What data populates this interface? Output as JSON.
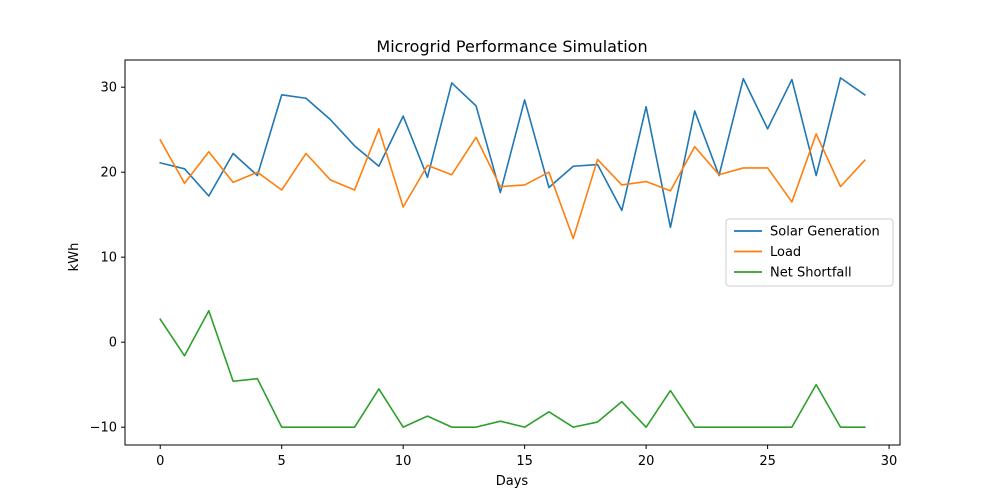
{
  "chart_data": {
    "type": "line",
    "title": "Microgrid Performance Simulation",
    "xlabel": "Days",
    "ylabel": "kWh",
    "xlim": [
      -1.45,
      30.45
    ],
    "ylim": [
      -12.1,
      33.2
    ],
    "x_ticks": [
      0,
      5,
      10,
      15,
      20,
      25,
      30
    ],
    "y_ticks": [
      -10,
      0,
      10,
      20,
      30
    ],
    "grid": false,
    "legend_position": "center-right",
    "x": [
      0,
      1,
      2,
      3,
      4,
      5,
      6,
      7,
      8,
      9,
      10,
      11,
      12,
      13,
      14,
      15,
      16,
      17,
      18,
      19,
      20,
      21,
      22,
      23,
      24,
      25,
      26,
      27,
      28,
      29
    ],
    "series": [
      {
        "name": "Solar Generation",
        "color": "#1f77b4",
        "values": [
          21.1,
          20.4,
          17.2,
          22.2,
          19.6,
          29.1,
          28.7,
          26.2,
          23.1,
          20.7,
          26.6,
          19.4,
          30.5,
          27.8,
          17.6,
          28.5,
          18.2,
          20.7,
          20.9,
          15.5,
          27.7,
          13.5,
          27.2,
          19.6,
          31.0,
          25.1,
          30.9,
          19.6,
          31.1,
          29.1
        ]
      },
      {
        "name": "Load",
        "color": "#ff7f0e",
        "values": [
          23.8,
          18.7,
          22.4,
          18.8,
          20.0,
          17.9,
          22.2,
          19.1,
          17.9,
          25.1,
          15.9,
          20.8,
          19.7,
          24.1,
          18.3,
          18.5,
          20.0,
          12.2,
          21.5,
          18.5,
          18.9,
          17.8,
          23.0,
          19.7,
          20.5,
          20.5,
          16.5,
          24.5,
          18.3,
          21.4
        ]
      },
      {
        "name": "Net Shortfall",
        "color": "#2ca02c",
        "values": [
          2.7,
          -1.6,
          3.7,
          -4.6,
          -4.3,
          -10.0,
          -10.0,
          -10.0,
          -10.0,
          -5.5,
          -10.0,
          -8.7,
          -10.0,
          -10.0,
          -9.3,
          -10.0,
          -8.2,
          -10.0,
          -9.4,
          -7.0,
          -10.0,
          -5.7,
          -10.0,
          -10.0,
          -10.0,
          -10.0,
          -10.0,
          -5.0,
          -10.0,
          -10.0
        ]
      }
    ]
  }
}
